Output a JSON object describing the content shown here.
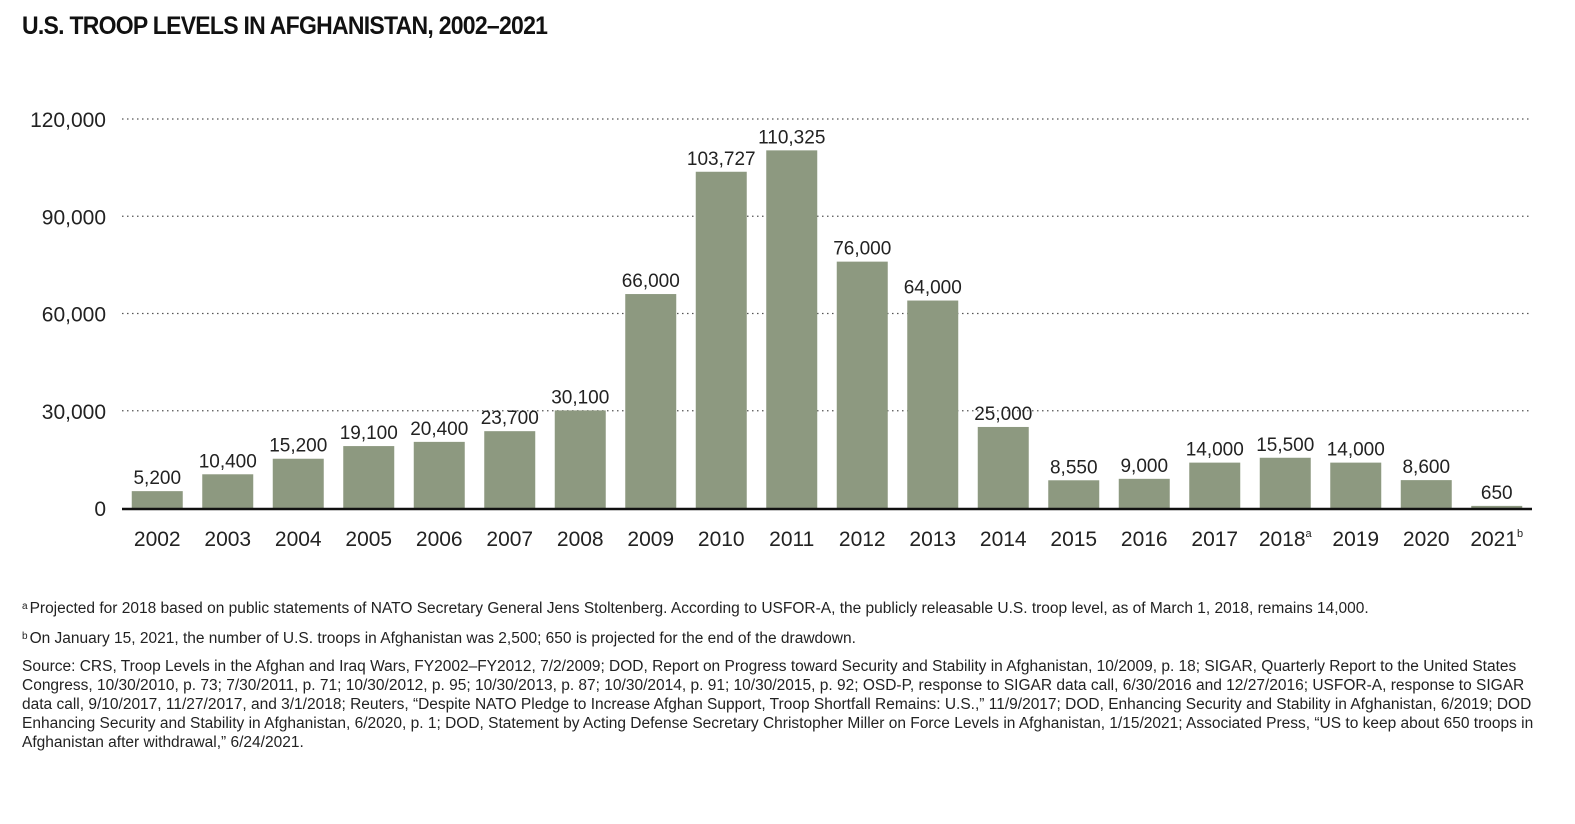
{
  "title": "U.S. TROOP LEVELS IN AFGHANISTAN, 2002–2021",
  "colors": {
    "bar": "#8d9980",
    "grid": "#555555",
    "axis": "#111111"
  },
  "chart_data": {
    "type": "bar",
    "title": "U.S. TROOP LEVELS IN AFGHANISTAN, 2002–2021",
    "xlabel": "",
    "ylabel": "",
    "ylim": [
      0,
      120000
    ],
    "yticks": [
      0,
      30000,
      60000,
      90000,
      120000
    ],
    "ytick_labels": [
      "0",
      "30,000",
      "60,000",
      "90,000",
      "120,000"
    ],
    "grid": "horizontal dotted",
    "categories": [
      "2002",
      "2003",
      "2004",
      "2005",
      "2006",
      "2007",
      "2008",
      "2009",
      "2010",
      "2011",
      "2012",
      "2013",
      "2014",
      "2015",
      "2016",
      "2017",
      "2018",
      "2019",
      "2020",
      "2021"
    ],
    "category_marks": [
      "",
      "",
      "",
      "",
      "",
      "",
      "",
      "",
      "",
      "",
      "",
      "",
      "",
      "",
      "",
      "",
      "a",
      "",
      "",
      "b"
    ],
    "values": [
      5200,
      10400,
      15200,
      19100,
      20400,
      23700,
      30100,
      66000,
      103727,
      110325,
      76000,
      64000,
      25000,
      8550,
      9000,
      14000,
      15500,
      14000,
      8600,
      650
    ],
    "value_labels": [
      "5,200",
      "10,400",
      "15,200",
      "19,100",
      "20,400",
      "23,700",
      "30,100",
      "66,000",
      "103,727",
      "110,325",
      "76,000",
      "64,000",
      "25,000",
      "8,550",
      "9,000",
      "14,000",
      "15,500",
      "14,000",
      "8,600",
      "650"
    ]
  },
  "notes": {
    "a_mark": "a",
    "a_text": "Projected for 2018 based on public statements of NATO Secretary General Jens Stoltenberg. According to USFOR-A, the publicly releasable U.S. troop level, as of March 1, 2018, remains 14,000.",
    "b_mark": "b",
    "b_text": "On January 15, 2021, the number of U.S. troops in Afghanistan was 2,500; 650 is projected for the end of the drawdown.",
    "source": "Source: CRS, Troop Levels in the Afghan and Iraq Wars, FY2002–FY2012, 7/2/2009; DOD, Report on Progress toward Security and Stability in Afghanistan, 10/2009, p. 18; SIGAR, Quarterly Report to the United States Congress, 10/30/2010, p. 73; 7/30/2011, p. 71; 10/30/2012, p. 95; 10/30/2013, p. 87; 10/30/2014, p. 91; 10/30/2015, p. 92; OSD-P, response to SIGAR data call, 6/30/2016 and 12/27/2016; USFOR-A, response to SIGAR data call, 9/10/2017, 11/27/2017, and 3/1/2018; Reuters, “Despite NATO Pledge to Increase Afghan Support, Troop Shortfall Remains: U.S.,” 11/9/2017; DOD, Enhancing Security and Stability in Afghanistan, 6/2019; DOD Enhancing Security and Stability in Afghanistan, 6/2020, p. 1; DOD, Statement by Acting Defense Secretary Christopher Miller on Force Levels in Afghanistan, 1/15/2021; Associated Press, “US to keep about 650 troops in Afghanistan after withdrawal,” 6/24/2021."
  }
}
